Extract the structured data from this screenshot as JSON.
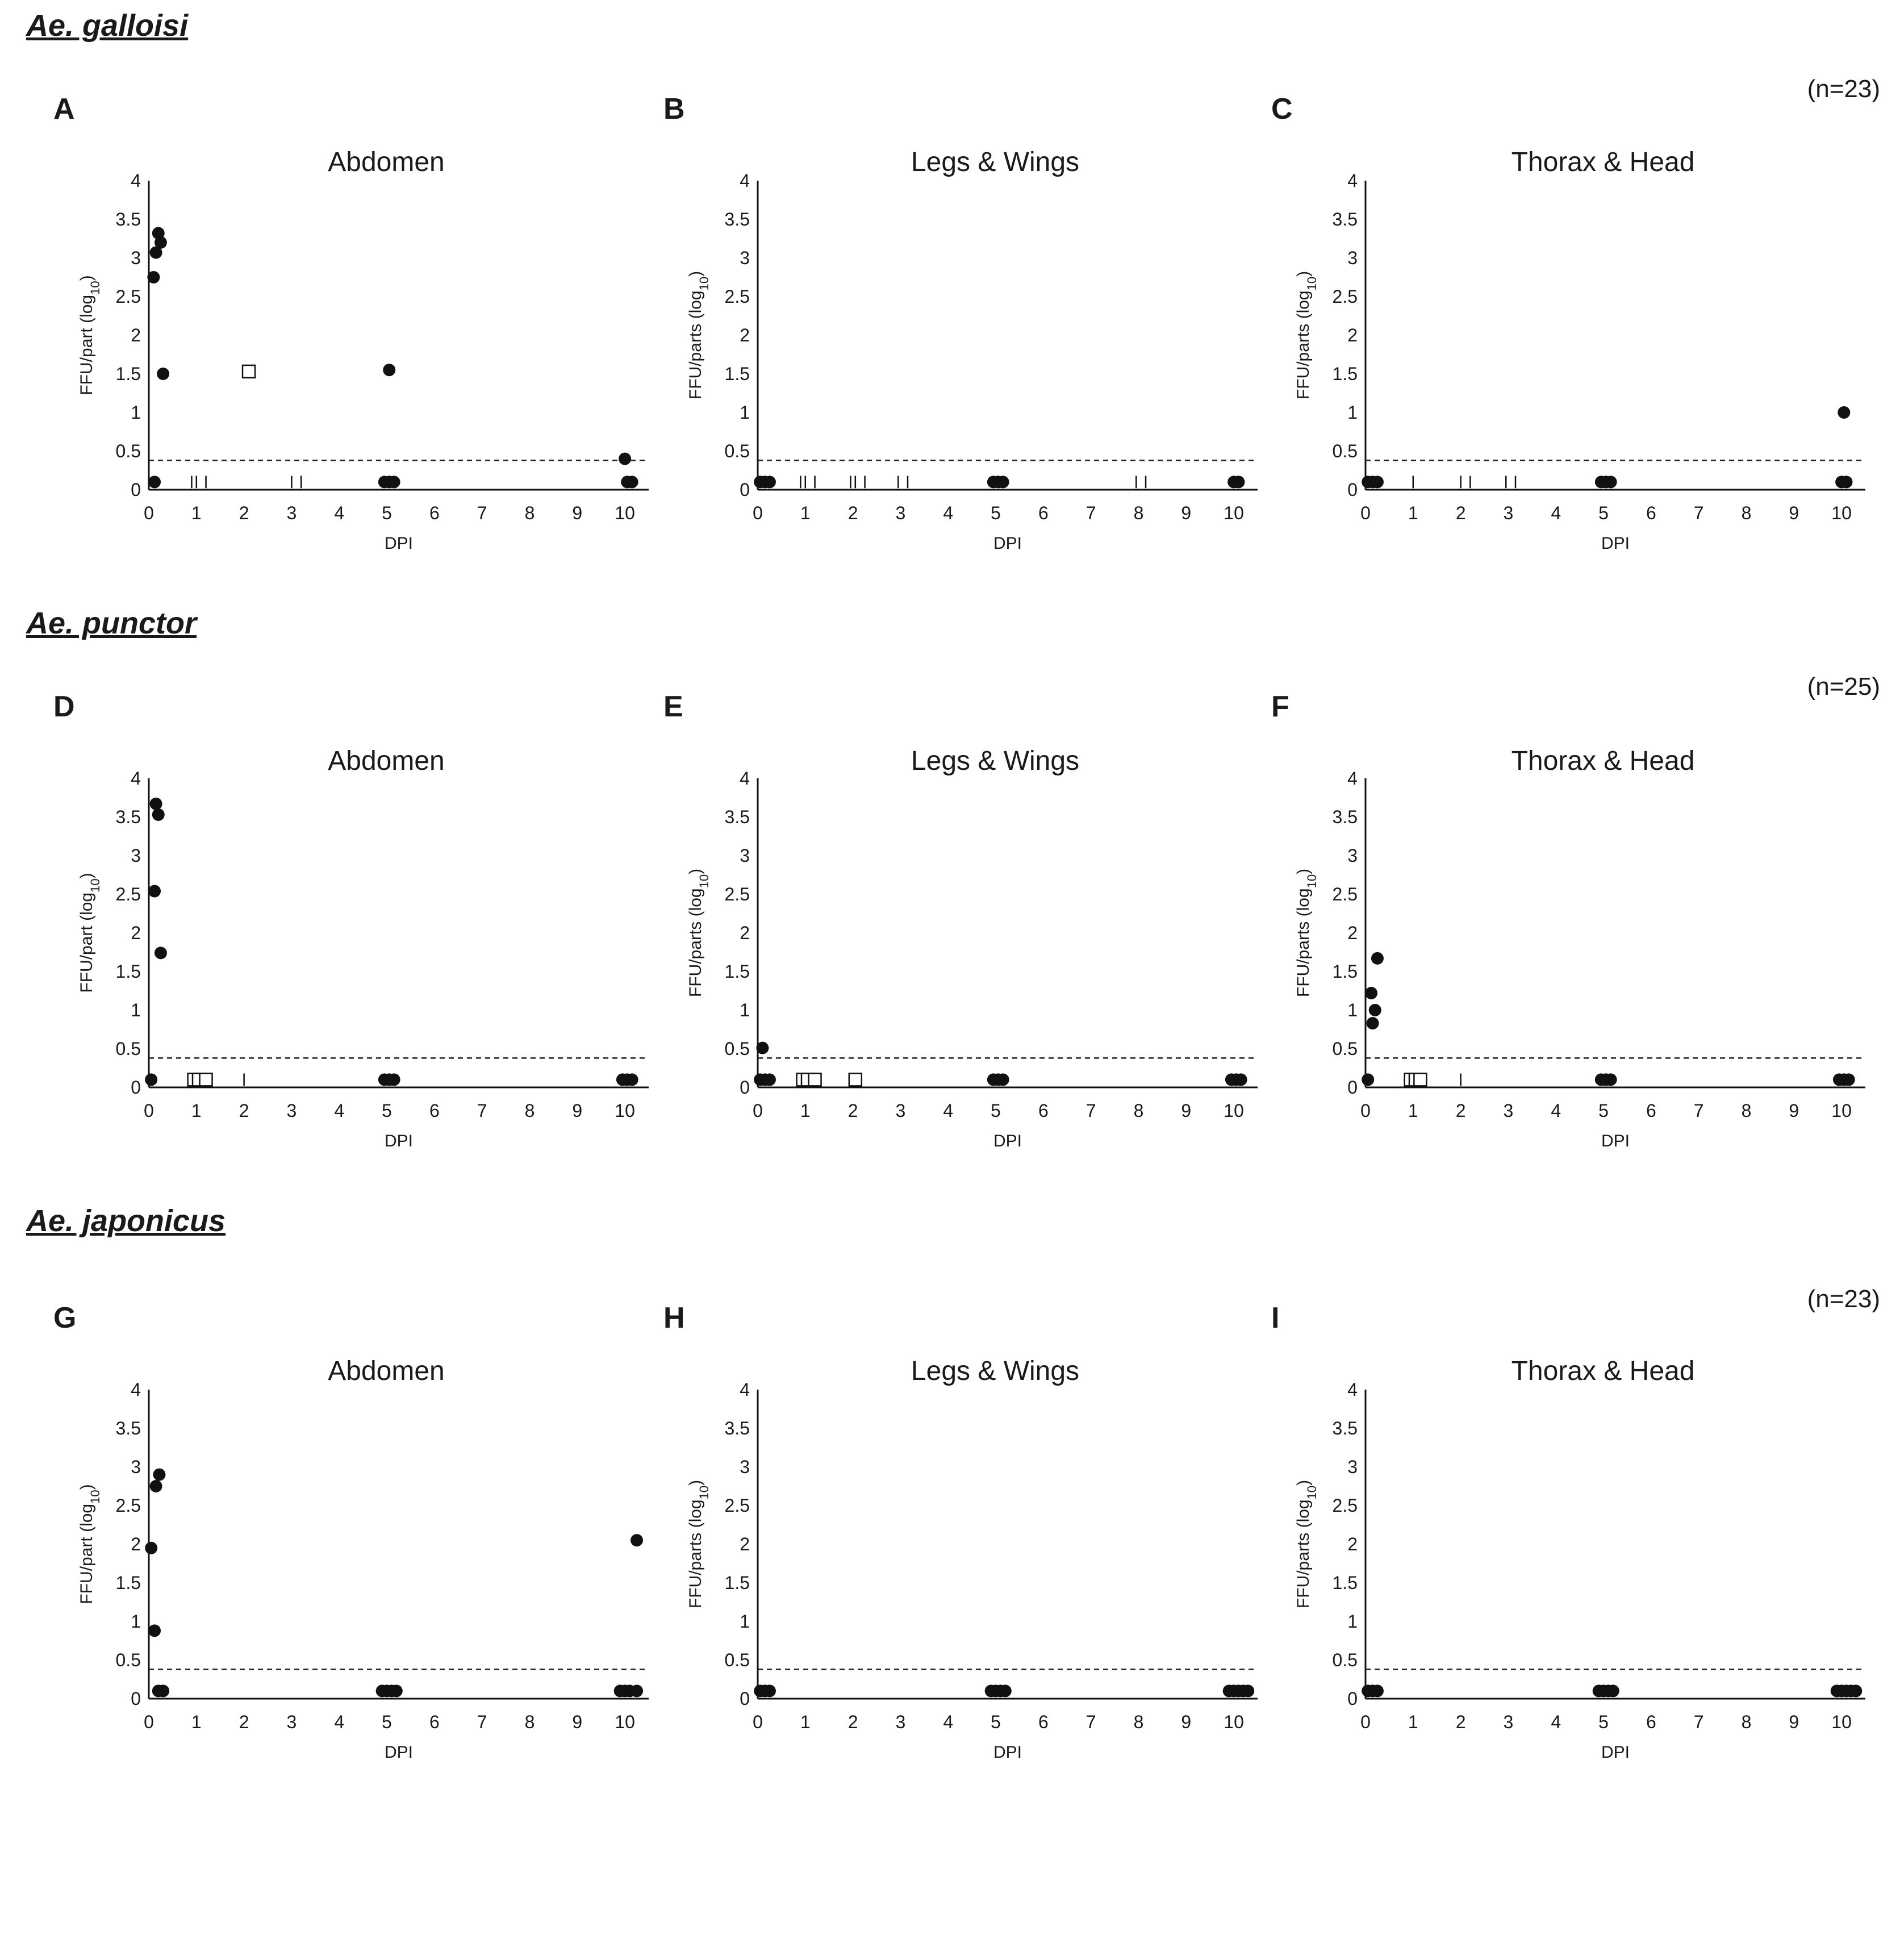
{
  "page": {
    "n_labels": [
      "(n=23)",
      "(n=25)",
      "(n=23)"
    ],
    "species": [
      "Ae. galloisi",
      "Ae. punctor",
      "Ae. japonicus"
    ]
  },
  "style": {
    "point_color": "#111111",
    "axis_color": "#111111",
    "threshold_color": "#222222"
  },
  "chart_data": [
    {
      "panel": "A",
      "type": "scatter",
      "title": "Abdomen",
      "xlabel": "DPI",
      "ylabel": "FFU/part (log10)",
      "xlim": [
        0,
        10.5
      ],
      "ylim": [
        0,
        4
      ],
      "xticks": [
        0,
        1,
        2,
        3,
        4,
        5,
        6,
        7,
        8,
        9,
        10
      ],
      "yticks": [
        0,
        0.5,
        1,
        1.5,
        2,
        2.5,
        3,
        3.5,
        4
      ],
      "threshold": 0.38,
      "points": [
        [
          0.1,
          2.75
        ],
        [
          0.15,
          3.07
        ],
        [
          0.2,
          3.32
        ],
        [
          0.25,
          3.2
        ],
        [
          0.3,
          1.5
        ],
        [
          0.12,
          0.1
        ],
        [
          2.1,
          1.53
        ],
        [
          5.05,
          1.55
        ],
        [
          4.95,
          0.1
        ],
        [
          5.05,
          0.1
        ],
        [
          5.15,
          0.1
        ],
        [
          10.0,
          0.4
        ],
        [
          10.05,
          0.1
        ],
        [
          10.15,
          0.1
        ]
      ],
      "markers": [
        "dot",
        "dot",
        "dot",
        "dot",
        "dot",
        "dot",
        "square",
        "dot",
        "dot",
        "dot",
        "dot",
        "dot",
        "dot",
        "dot"
      ],
      "ticks_marks": [
        0.9,
        1.0,
        1.2,
        3.0,
        3.2
      ]
    },
    {
      "panel": "B",
      "type": "scatter",
      "title": "Legs & Wings",
      "xlabel": "DPI",
      "ylabel": "FFU/parts (log10)",
      "xlim": [
        0,
        10.5
      ],
      "ylim": [
        0,
        4
      ],
      "xticks": [
        0,
        1,
        2,
        3,
        4,
        5,
        6,
        7,
        8,
        9,
        10
      ],
      "yticks": [
        0,
        0.5,
        1,
        1.5,
        2,
        2.5,
        3,
        3.5,
        4
      ],
      "threshold": 0.38,
      "points": [
        [
          0.05,
          0.1
        ],
        [
          0.15,
          0.1
        ],
        [
          0.25,
          0.1
        ],
        [
          4.95,
          0.1
        ],
        [
          5.05,
          0.1
        ],
        [
          5.15,
          0.1
        ],
        [
          10.0,
          0.1
        ],
        [
          10.1,
          0.1
        ]
      ],
      "markers": [
        "dot",
        "dot",
        "dot",
        "dot",
        "dot",
        "dot",
        "dot",
        "dot"
      ],
      "ticks_marks": [
        0.9,
        1.0,
        1.2,
        1.95,
        2.05,
        2.25,
        2.95,
        3.15,
        7.95,
        8.15
      ]
    },
    {
      "panel": "C",
      "type": "scatter",
      "title": "Thorax & Head",
      "xlabel": "DPI",
      "ylabel": "FFU/parts (log10)",
      "xlim": [
        0,
        10.5
      ],
      "ylim": [
        0,
        4
      ],
      "xticks": [
        0,
        1,
        2,
        3,
        4,
        5,
        6,
        7,
        8,
        9,
        10
      ],
      "yticks": [
        0,
        0.5,
        1,
        1.5,
        2,
        2.5,
        3,
        3.5,
        4
      ],
      "threshold": 0.38,
      "points": [
        [
          0.05,
          0.1
        ],
        [
          0.15,
          0.1
        ],
        [
          0.25,
          0.1
        ],
        [
          4.95,
          0.1
        ],
        [
          5.05,
          0.1
        ],
        [
          5.15,
          0.1
        ],
        [
          10.05,
          1.0
        ],
        [
          10.0,
          0.1
        ],
        [
          10.1,
          0.1
        ]
      ],
      "markers": [
        "dot",
        "dot",
        "dot",
        "dot",
        "dot",
        "dot",
        "dot",
        "dot",
        "dot"
      ],
      "ticks_marks": [
        1.0,
        2.0,
        2.2,
        2.95,
        3.15
      ]
    },
    {
      "panel": "D",
      "type": "scatter",
      "title": "Abdomen",
      "xlabel": "DPI",
      "ylabel": "FFU/part (log10)",
      "xlim": [
        0,
        10.5
      ],
      "ylim": [
        0,
        4
      ],
      "xticks": [
        0,
        1,
        2,
        3,
        4,
        5,
        6,
        7,
        8,
        9,
        10
      ],
      "yticks": [
        0,
        0.5,
        1,
        1.5,
        2,
        2.5,
        3,
        3.5,
        4
      ],
      "threshold": 0.38,
      "points": [
        [
          0.15,
          3.67
        ],
        [
          0.2,
          3.53
        ],
        [
          0.12,
          2.54
        ],
        [
          0.25,
          1.74
        ],
        [
          0.05,
          0.1
        ],
        [
          0.95,
          0.1
        ],
        [
          1.05,
          0.1
        ],
        [
          1.2,
          0.1
        ],
        [
          4.95,
          0.1
        ],
        [
          5.05,
          0.1
        ],
        [
          5.15,
          0.1
        ],
        [
          9.95,
          0.1
        ],
        [
          10.05,
          0.1
        ],
        [
          10.15,
          0.1
        ]
      ],
      "markers": [
        "dot",
        "dot",
        "dot",
        "dot",
        "dot",
        "square",
        "square",
        "square",
        "dot",
        "dot",
        "dot",
        "dot",
        "dot",
        "dot"
      ],
      "ticks_marks": [
        2.0
      ]
    },
    {
      "panel": "E",
      "type": "scatter",
      "title": "Legs & Wings",
      "xlabel": "DPI",
      "ylabel": "FFU/parts (log10)",
      "xlim": [
        0,
        10.5
      ],
      "ylim": [
        0,
        4
      ],
      "xticks": [
        0,
        1,
        2,
        3,
        4,
        5,
        6,
        7,
        8,
        9,
        10
      ],
      "yticks": [
        0,
        0.5,
        1,
        1.5,
        2,
        2.5,
        3,
        3.5,
        4
      ],
      "threshold": 0.38,
      "points": [
        [
          0.1,
          0.51
        ],
        [
          0.05,
          0.1
        ],
        [
          0.15,
          0.1
        ],
        [
          0.25,
          0.1
        ],
        [
          0.95,
          0.1
        ],
        [
          1.05,
          0.1
        ],
        [
          1.2,
          0.1
        ],
        [
          2.05,
          0.1
        ],
        [
          4.95,
          0.1
        ],
        [
          5.05,
          0.1
        ],
        [
          5.15,
          0.1
        ],
        [
          9.95,
          0.1
        ],
        [
          10.05,
          0.1
        ],
        [
          10.15,
          0.1
        ]
      ],
      "markers": [
        "dot",
        "dot",
        "dot",
        "dot",
        "square",
        "square",
        "square",
        "square",
        "dot",
        "dot",
        "dot",
        "dot",
        "dot",
        "dot"
      ],
      "ticks_marks": []
    },
    {
      "panel": "F",
      "type": "scatter",
      "title": "Thorax & Head",
      "xlabel": "DPI",
      "ylabel": "FFU/parts (log10)",
      "xlim": [
        0,
        10.5
      ],
      "ylim": [
        0,
        4
      ],
      "xticks": [
        0,
        1,
        2,
        3,
        4,
        5,
        6,
        7,
        8,
        9,
        10
      ],
      "yticks": [
        0,
        0.5,
        1,
        1.5,
        2,
        2.5,
        3,
        3.5,
        4
      ],
      "threshold": 0.38,
      "points": [
        [
          0.25,
          1.67
        ],
        [
          0.12,
          1.22
        ],
        [
          0.2,
          1.0
        ],
        [
          0.15,
          0.83
        ],
        [
          0.05,
          0.1
        ],
        [
          0.95,
          0.1
        ],
        [
          1.05,
          0.1
        ],
        [
          1.15,
          0.1
        ],
        [
          4.95,
          0.1
        ],
        [
          5.05,
          0.1
        ],
        [
          5.15,
          0.1
        ],
        [
          9.95,
          0.1
        ],
        [
          10.05,
          0.1
        ],
        [
          10.15,
          0.1
        ]
      ],
      "markers": [
        "dot",
        "dot",
        "dot",
        "dot",
        "dot",
        "square",
        "square",
        "square",
        "dot",
        "dot",
        "dot",
        "dot",
        "dot",
        "dot"
      ],
      "ticks_marks": [
        2.0
      ]
    },
    {
      "panel": "G",
      "type": "scatter",
      "title": "Abdomen",
      "xlabel": "DPI",
      "ylabel": "FFU/part (log10)",
      "xlim": [
        0,
        10.5
      ],
      "ylim": [
        0,
        4
      ],
      "xticks": [
        0,
        1,
        2,
        3,
        4,
        5,
        6,
        7,
        8,
        9,
        10
      ],
      "yticks": [
        0,
        0.5,
        1,
        1.5,
        2,
        2.5,
        3,
        3.5,
        4
      ],
      "threshold": 0.38,
      "points": [
        [
          0.05,
          1.95
        ],
        [
          0.15,
          2.75
        ],
        [
          0.22,
          2.9
        ],
        [
          0.12,
          0.88
        ],
        [
          0.2,
          0.1
        ],
        [
          0.3,
          0.1
        ],
        [
          4.9,
          0.1
        ],
        [
          5.0,
          0.1
        ],
        [
          5.1,
          0.1
        ],
        [
          5.2,
          0.1
        ],
        [
          9.9,
          0.1
        ],
        [
          10.0,
          0.1
        ],
        [
          10.1,
          0.1
        ],
        [
          10.25,
          0.1
        ],
        [
          10.25,
          2.05
        ]
      ],
      "markers": [
        "dot",
        "dot",
        "dot",
        "dot",
        "dot",
        "dot",
        "dot",
        "dot",
        "dot",
        "dot",
        "dot",
        "dot",
        "dot",
        "dot",
        "dot"
      ],
      "ticks_marks": []
    },
    {
      "panel": "H",
      "type": "scatter",
      "title": "Legs & Wings",
      "xlabel": "DPI",
      "ylabel": "FFU/parts (log10)",
      "xlim": [
        0,
        10.5
      ],
      "ylim": [
        0,
        4
      ],
      "xticks": [
        0,
        1,
        2,
        3,
        4,
        5,
        6,
        7,
        8,
        9,
        10
      ],
      "yticks": [
        0,
        0.5,
        1,
        1.5,
        2,
        2.5,
        3,
        3.5,
        4
      ],
      "threshold": 0.38,
      "points": [
        [
          0.05,
          0.1
        ],
        [
          0.15,
          0.1
        ],
        [
          0.25,
          0.1
        ],
        [
          4.9,
          0.1
        ],
        [
          5.0,
          0.1
        ],
        [
          5.1,
          0.1
        ],
        [
          5.2,
          0.1
        ],
        [
          9.9,
          0.1
        ],
        [
          10.0,
          0.1
        ],
        [
          10.1,
          0.1
        ],
        [
          10.2,
          0.1
        ],
        [
          10.3,
          0.1
        ]
      ],
      "markers": [
        "dot",
        "dot",
        "dot",
        "dot",
        "dot",
        "dot",
        "dot",
        "dot",
        "dot",
        "dot",
        "dot",
        "dot"
      ],
      "ticks_marks": []
    },
    {
      "panel": "I",
      "type": "scatter",
      "title": "Thorax & Head",
      "xlabel": "DPI",
      "ylabel": "FFU/parts (log10)",
      "xlim": [
        0,
        10.5
      ],
      "ylim": [
        0,
        4
      ],
      "xticks": [
        0,
        1,
        2,
        3,
        4,
        5,
        6,
        7,
        8,
        9,
        10
      ],
      "yticks": [
        0,
        0.5,
        1,
        1.5,
        2,
        2.5,
        3,
        3.5,
        4
      ],
      "threshold": 0.38,
      "points": [
        [
          0.05,
          0.1
        ],
        [
          0.15,
          0.1
        ],
        [
          0.25,
          0.1
        ],
        [
          4.9,
          0.1
        ],
        [
          5.0,
          0.1
        ],
        [
          5.1,
          0.1
        ],
        [
          5.2,
          0.1
        ],
        [
          9.9,
          0.1
        ],
        [
          10.0,
          0.1
        ],
        [
          10.1,
          0.1
        ],
        [
          10.2,
          0.1
        ],
        [
          10.3,
          0.1
        ]
      ],
      "markers": [
        "dot",
        "dot",
        "dot",
        "dot",
        "dot",
        "dot",
        "dot",
        "dot",
        "dot",
        "dot",
        "dot",
        "dot"
      ],
      "ticks_marks": []
    }
  ]
}
